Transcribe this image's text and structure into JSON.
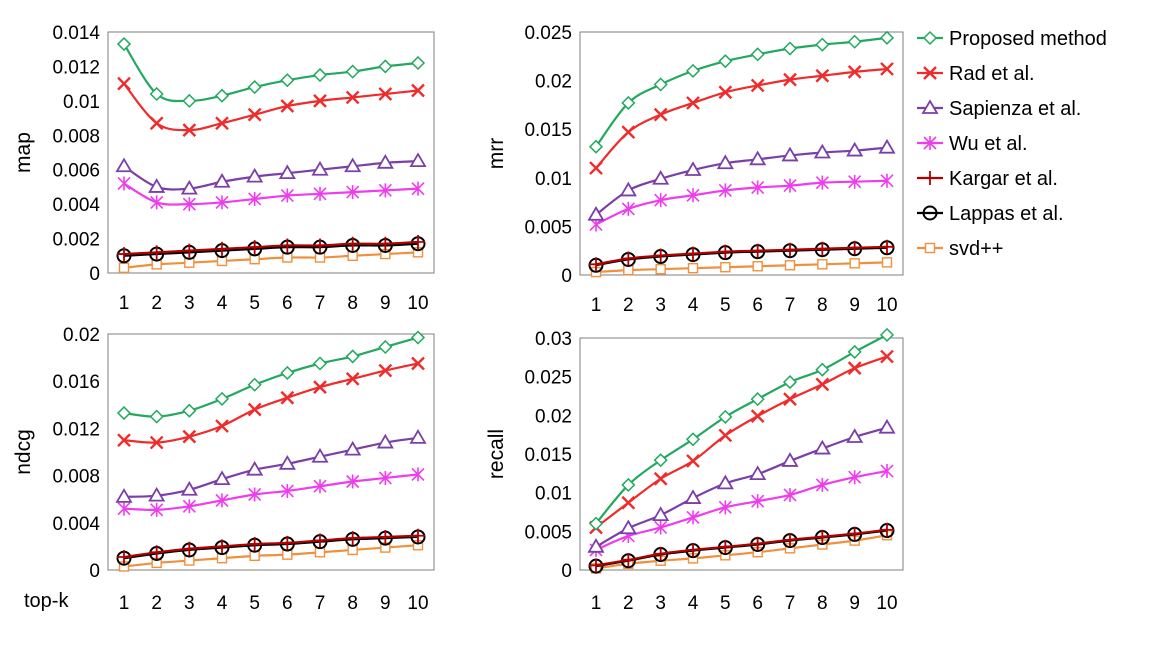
{
  "figure": {
    "xaxis_label": "top-k",
    "x_ticks": [
      "1",
      "2",
      "3",
      "4",
      "5",
      "6",
      "7",
      "8",
      "9",
      "10"
    ]
  },
  "legend": [
    {
      "name": "Proposed method",
      "color": "#22a95e",
      "marker": "diamond"
    },
    {
      "name": "Rad et al.",
      "color": "#f02b2b",
      "marker": "x"
    },
    {
      "name": "Sapienza et al.",
      "color": "#7b3fa8",
      "marker": "triangle"
    },
    {
      "name": "Wu et al.",
      "color": "#ee3cee",
      "marker": "star"
    },
    {
      "name": "Kargar et al.",
      "color": "#b00000",
      "marker": "plus"
    },
    {
      "name": "Lappas et al.",
      "color": "#000000",
      "marker": "circle"
    },
    {
      "name": "svd++",
      "color": "#f0903c",
      "marker": "square"
    }
  ],
  "chart_data": [
    {
      "type": "line",
      "ylabel": "map",
      "x": [
        1,
        2,
        3,
        4,
        5,
        6,
        7,
        8,
        9,
        10
      ],
      "ylim": [
        0,
        0.014
      ],
      "yticks": [
        "0",
        "0.002",
        "0.004",
        "0.006",
        "0.008",
        "0.01",
        "0.012",
        "0.014"
      ],
      "ytick_values": [
        0,
        0.002,
        0.004,
        0.006,
        0.008,
        0.01,
        0.012,
        0.014
      ],
      "grid": false,
      "series": [
        {
          "name": "Proposed method",
          "values": [
            0.0133,
            0.0104,
            0.01,
            0.0103,
            0.0108,
            0.0112,
            0.0115,
            0.0117,
            0.012,
            0.0122
          ]
        },
        {
          "name": "Rad et al.",
          "values": [
            0.011,
            0.0087,
            0.0083,
            0.0087,
            0.0092,
            0.0097,
            0.01,
            0.0102,
            0.0104,
            0.0106
          ]
        },
        {
          "name": "Sapienza et al.",
          "values": [
            0.0062,
            0.005,
            0.0049,
            0.0053,
            0.0056,
            0.0058,
            0.006,
            0.0062,
            0.0064,
            0.0065
          ]
        },
        {
          "name": "Wu et al.",
          "values": [
            0.0052,
            0.0041,
            0.004,
            0.0041,
            0.0043,
            0.0045,
            0.0046,
            0.0047,
            0.0048,
            0.0049
          ]
        },
        {
          "name": "Kargar et al.",
          "values": [
            0.0011,
            0.0012,
            0.0013,
            0.0014,
            0.0015,
            0.0016,
            0.0016,
            0.0017,
            0.0017,
            0.0018
          ]
        },
        {
          "name": "Lappas et al.",
          "values": [
            0.001,
            0.0011,
            0.0012,
            0.0013,
            0.0014,
            0.0015,
            0.0015,
            0.0016,
            0.0016,
            0.0017
          ]
        },
        {
          "name": "svd++",
          "values": [
            0.0003,
            0.0005,
            0.0006,
            0.0007,
            0.0008,
            0.0009,
            0.0009,
            0.001,
            0.0011,
            0.0012
          ]
        }
      ]
    },
    {
      "type": "line",
      "ylabel": "mrr",
      "x": [
        1,
        2,
        3,
        4,
        5,
        6,
        7,
        8,
        9,
        10
      ],
      "ylim": [
        0,
        0.025
      ],
      "yticks": [
        "0",
        "0.005",
        "0.01",
        "0.015",
        "0.02",
        "0.025"
      ],
      "ytick_values": [
        0,
        0.005,
        0.01,
        0.015,
        0.02,
        0.025
      ],
      "grid": false,
      "series": [
        {
          "name": "Proposed method",
          "values": [
            0.0132,
            0.0177,
            0.0196,
            0.021,
            0.022,
            0.0227,
            0.0233,
            0.0237,
            0.024,
            0.0244
          ]
        },
        {
          "name": "Rad et al.",
          "values": [
            0.011,
            0.0147,
            0.0165,
            0.0177,
            0.0188,
            0.0195,
            0.0201,
            0.0205,
            0.0209,
            0.0212
          ]
        },
        {
          "name": "Sapienza et al.",
          "values": [
            0.0062,
            0.0087,
            0.0099,
            0.0108,
            0.0115,
            0.0119,
            0.0123,
            0.0126,
            0.0128,
            0.0131
          ]
        },
        {
          "name": "Wu et al.",
          "values": [
            0.0052,
            0.0068,
            0.0077,
            0.0082,
            0.0087,
            0.009,
            0.0092,
            0.0095,
            0.0096,
            0.0097
          ]
        },
        {
          "name": "Kargar et al.",
          "values": [
            0.0011,
            0.0017,
            0.002,
            0.0022,
            0.0024,
            0.0025,
            0.0026,
            0.0027,
            0.0028,
            0.0029
          ]
        },
        {
          "name": "Lappas et al.",
          "values": [
            0.001,
            0.0016,
            0.0019,
            0.0021,
            0.0023,
            0.0024,
            0.0025,
            0.0026,
            0.0027,
            0.0028
          ]
        },
        {
          "name": "svd++",
          "values": [
            0.0003,
            0.0005,
            0.0006,
            0.0007,
            0.0008,
            0.0009,
            0.001,
            0.0011,
            0.0012,
            0.0013
          ]
        }
      ]
    },
    {
      "type": "line",
      "ylabel": "ndcg",
      "x": [
        1,
        2,
        3,
        4,
        5,
        6,
        7,
        8,
        9,
        10
      ],
      "ylim": [
        0,
        0.02
      ],
      "yticks": [
        "0",
        "0.004",
        "0.008",
        "0.012",
        "0.016",
        "0.02"
      ],
      "ytick_values": [
        0,
        0.004,
        0.008,
        0.012,
        0.016,
        0.02
      ],
      "grid": false,
      "series": [
        {
          "name": "Proposed method",
          "values": [
            0.0133,
            0.013,
            0.0135,
            0.0145,
            0.0157,
            0.0167,
            0.0175,
            0.0181,
            0.0189,
            0.0197
          ]
        },
        {
          "name": "Rad et al.",
          "values": [
            0.011,
            0.0108,
            0.0113,
            0.0122,
            0.0136,
            0.0146,
            0.0155,
            0.0162,
            0.0169,
            0.0175
          ]
        },
        {
          "name": "Sapienza et al.",
          "values": [
            0.0062,
            0.0063,
            0.0068,
            0.0077,
            0.0085,
            0.009,
            0.0096,
            0.0102,
            0.0108,
            0.0112
          ]
        },
        {
          "name": "Wu et al.",
          "values": [
            0.0052,
            0.0051,
            0.0054,
            0.0059,
            0.0064,
            0.0067,
            0.0071,
            0.0075,
            0.0078,
            0.0081
          ]
        },
        {
          "name": "Kargar et al.",
          "values": [
            0.0011,
            0.0015,
            0.0018,
            0.002,
            0.0022,
            0.0023,
            0.0025,
            0.0027,
            0.0028,
            0.0029
          ]
        },
        {
          "name": "Lappas et al.",
          "values": [
            0.001,
            0.0014,
            0.0017,
            0.0019,
            0.0021,
            0.0022,
            0.0024,
            0.0026,
            0.0027,
            0.0028
          ]
        },
        {
          "name": "svd++",
          "values": [
            0.0003,
            0.0006,
            0.0008,
            0.001,
            0.0012,
            0.0013,
            0.0015,
            0.0017,
            0.0019,
            0.0021
          ]
        }
      ]
    },
    {
      "type": "line",
      "ylabel": "recall",
      "x": [
        1,
        2,
        3,
        4,
        5,
        6,
        7,
        8,
        9,
        10
      ],
      "ylim": [
        0,
        0.03
      ],
      "yticks": [
        "0",
        "0.005",
        "0.01",
        "0.015",
        "0.02",
        "0.025",
        "0.03"
      ],
      "ytick_values": [
        0,
        0.005,
        0.01,
        0.015,
        0.02,
        0.025,
        0.03
      ],
      "grid": false,
      "series": [
        {
          "name": "Proposed method",
          "values": [
            0.006,
            0.011,
            0.0142,
            0.0169,
            0.0198,
            0.0221,
            0.0243,
            0.0259,
            0.0282,
            0.0304
          ]
        },
        {
          "name": "Rad et al.",
          "values": [
            0.0055,
            0.0087,
            0.0118,
            0.0141,
            0.0174,
            0.0199,
            0.0221,
            0.024,
            0.0261,
            0.0276
          ]
        },
        {
          "name": "Sapienza et al.",
          "values": [
            0.003,
            0.0054,
            0.0071,
            0.0093,
            0.0112,
            0.0124,
            0.0141,
            0.0157,
            0.0172,
            0.0184
          ]
        },
        {
          "name": "Wu et al.",
          "values": [
            0.0026,
            0.0044,
            0.0055,
            0.0068,
            0.0081,
            0.0089,
            0.0097,
            0.011,
            0.012,
            0.0128
          ]
        },
        {
          "name": "Kargar et al.",
          "values": [
            0.0006,
            0.0013,
            0.0021,
            0.0026,
            0.003,
            0.0034,
            0.0039,
            0.0043,
            0.0047,
            0.0052
          ]
        },
        {
          "name": "Lappas et al.",
          "values": [
            0.0005,
            0.0012,
            0.002,
            0.0025,
            0.0029,
            0.0033,
            0.0038,
            0.0042,
            0.0046,
            0.0051
          ]
        },
        {
          "name": "svd++",
          "values": [
            0.0002,
            0.0008,
            0.0012,
            0.0015,
            0.0019,
            0.0023,
            0.0028,
            0.0033,
            0.0038,
            0.0045
          ]
        }
      ]
    }
  ]
}
